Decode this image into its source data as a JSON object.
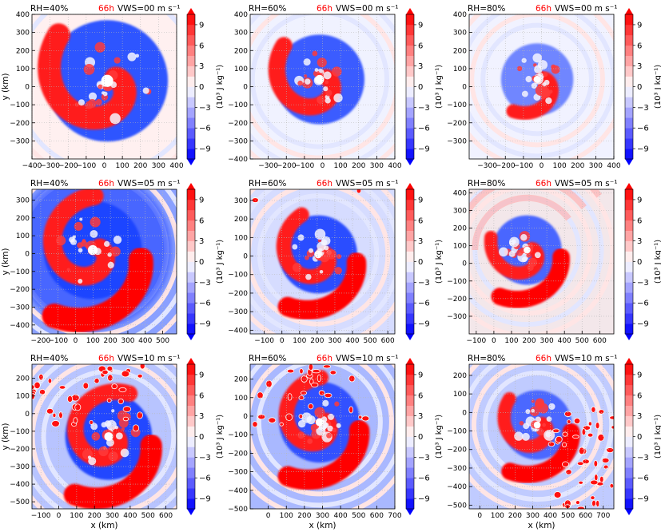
{
  "colors": {
    "red": "#ff0000",
    "blue": "#0000ff",
    "time_label": "#ff0000",
    "grid": "#b8b8b8"
  },
  "colorbar": {
    "label": "(10³ J kg⁻¹)",
    "ticks": [
      9,
      6,
      3,
      0,
      -3,
      -6,
      -9
    ],
    "tick_labels": [
      "9",
      "6",
      "3",
      "0",
      "−3",
      "−6",
      "−9"
    ],
    "range": [
      -10.5,
      10.5
    ],
    "levels": 14,
    "extend": "both"
  },
  "chart_data": [
    {
      "type": "heatmap",
      "rh": "RH=40%",
      "time": "66h",
      "vws": "VWS=00 m s⁻¹",
      "xlim": [
        -400,
        400
      ],
      "ylim": [
        -400,
        400
      ],
      "xticks": [
        "−400",
        "−300",
        "−200",
        "−100",
        "0",
        "100",
        "200",
        "300",
        "400"
      ],
      "yticks": [
        "−300",
        "−200",
        "−100",
        "0",
        "100",
        "200",
        "300",
        "400"
      ],
      "xlabel": "",
      "ylabel": "y (km)",
      "pattern": "tightly wound spiral bands of alternating red and blue around the storm center",
      "rows": 0,
      "col": 0
    },
    {
      "type": "heatmap",
      "rh": "RH=60%",
      "time": "66h",
      "vws": "VWS=00 m s⁻¹",
      "xlim": [
        -400,
        400
      ],
      "ylim": [
        -400,
        400
      ],
      "xticks": [
        "−300",
        "−200",
        "−100",
        "0",
        "100",
        "200",
        "300",
        "400"
      ],
      "yticks": [
        "−400",
        "−300",
        "−200",
        "−100",
        "0",
        "100",
        "200",
        "300",
        "400"
      ],
      "xlabel": "",
      "ylabel": "",
      "pattern": "spiral with blue ring and red inflow band to the south-east",
      "rows": 0,
      "col": 1
    },
    {
      "type": "heatmap",
      "rh": "RH=80%",
      "time": "66h",
      "vws": "VWS=00 m s⁻¹",
      "xlim": [
        -400,
        400
      ],
      "ylim": [
        -400,
        400
      ],
      "xticks": [
        "−300",
        "−200",
        "−100",
        "0",
        "100",
        "200",
        "300",
        "400"
      ],
      "yticks": [
        "−300",
        "−200",
        "−100",
        "0",
        "100",
        "200",
        "300",
        "400"
      ],
      "xlabel": "",
      "ylabel": "",
      "pattern": "compact mixed red/blue spiral core",
      "rows": 0,
      "col": 2
    },
    {
      "type": "heatmap",
      "rh": "RH=40%",
      "time": "66h",
      "vws": "VWS=05 m s⁻¹",
      "xlim": [
        -250,
        580
      ],
      "ylim": [
        -450,
        360
      ],
      "xticks": [
        "−200",
        "−100",
        "0",
        "100",
        "200",
        "300",
        "400",
        "500"
      ],
      "yticks": [
        "−400",
        "−300",
        "−200",
        "−100",
        "0",
        "100",
        "200",
        "300"
      ],
      "xlabel": "",
      "ylabel": "y (km)",
      "pattern": "large blue ring with broad red band trailing to the south",
      "rows": 1,
      "col": 0
    },
    {
      "type": "heatmap",
      "rh": "RH=60%",
      "time": "66h",
      "vws": "VWS=05 m s⁻¹",
      "xlim": [
        -180,
        640
      ],
      "ylim": [
        -420,
        360
      ],
      "xticks": [
        "−100",
        "0",
        "100",
        "200",
        "300",
        "400",
        "500",
        "600"
      ],
      "yticks": [
        "−400",
        "−300",
        "−200",
        "−100",
        "0",
        "100",
        "200",
        "300"
      ],
      "xlabel": "",
      "ylabel": "",
      "pattern": "blue core ring with red spiral band curving south",
      "rows": 1,
      "col": 1
    },
    {
      "type": "heatmap",
      "rh": "RH=80%",
      "time": "66h",
      "vws": "VWS=05 m s⁻¹",
      "xlim": [
        -140,
        680
      ],
      "ylim": [
        -400,
        420
      ],
      "xticks": [
        "−100",
        "0",
        "100",
        "200",
        "300",
        "400",
        "500",
        "600"
      ],
      "yticks": [
        "−300",
        "−200",
        "−100",
        "0",
        "100",
        "200",
        "300",
        "400"
      ],
      "xlabel": "",
      "ylabel": "",
      "pattern": "faint red outer spiral arcs with compact red/blue core",
      "rows": 1,
      "col": 2
    },
    {
      "type": "heatmap",
      "rh": "RH=40%",
      "time": "66h",
      "vws": "VWS=10 m s⁻¹",
      "xlim": [
        -150,
        660
      ],
      "ylim": [
        -540,
        280
      ],
      "xticks": [
        "−100",
        "0",
        "100",
        "200",
        "300",
        "400",
        "500",
        "600"
      ],
      "yticks": [
        "−500",
        "−400",
        "−300",
        "−200",
        "−100",
        "0",
        "100",
        "200"
      ],
      "xlabel": "x (km)",
      "ylabel": "y (km)",
      "pattern": "scattered red convective cells to the north-west, large red spiral with blue ring",
      "rows": 2,
      "col": 0
    },
    {
      "type": "heatmap",
      "rh": "RH=60%",
      "time": "66h",
      "vws": "VWS=10 m s⁻¹",
      "xlim": [
        -100,
        700
      ],
      "ylim": [
        -500,
        280
      ],
      "xticks": [
        "0",
        "100",
        "200",
        "300",
        "400",
        "500",
        "600",
        "700"
      ],
      "yticks": [
        "−500",
        "−400",
        "−300",
        "−200",
        "−100",
        "0",
        "100",
        "200"
      ],
      "xlabel": "x (km)",
      "ylabel": "",
      "pattern": "blue ring around mixed core, red band to the south-east, scattered red cells",
      "rows": 2,
      "col": 1
    },
    {
      "type": "heatmap",
      "rh": "RH=80%",
      "time": "66h",
      "vws": "VWS=10 m s⁻¹",
      "xlim": [
        -60,
        760
      ],
      "ylim": [
        -520,
        260
      ],
      "xticks": [
        "0",
        "100",
        "200",
        "300",
        "400",
        "500",
        "600",
        "700"
      ],
      "yticks": [
        "−500",
        "−400",
        "−300",
        "−200",
        "−100",
        "0",
        "100",
        "200"
      ],
      "xlabel": "x (km)",
      "ylabel": "",
      "pattern": "red spiral core with blue eye, red scattered cells to the east",
      "rows": 2,
      "col": 2
    }
  ]
}
